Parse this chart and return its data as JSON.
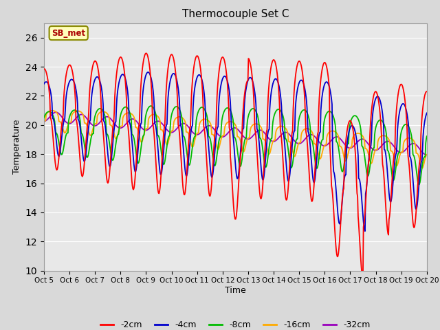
{
  "title": "Thermocouple Set C",
  "xlabel": "Time",
  "ylabel": "Temperature",
  "ylim": [
    10,
    27
  ],
  "yticks": [
    10,
    12,
    14,
    16,
    18,
    20,
    22,
    24,
    26
  ],
  "colors": {
    "-2cm": "#ff0000",
    "-4cm": "#0000cc",
    "-8cm": "#00bb00",
    "-16cm": "#ffaa00",
    "-32cm": "#9900bb"
  },
  "legend_labels": [
    "-2cm",
    "-4cm",
    "-8cm",
    "-16cm",
    "-32cm"
  ],
  "annotation_text": "SB_met",
  "background_color": "#d9d9d9",
  "plot_bg_color": "#e8e8e8",
  "grid_color": "#ffffff",
  "figsize": [
    6.4,
    4.8
  ],
  "dpi": 100
}
